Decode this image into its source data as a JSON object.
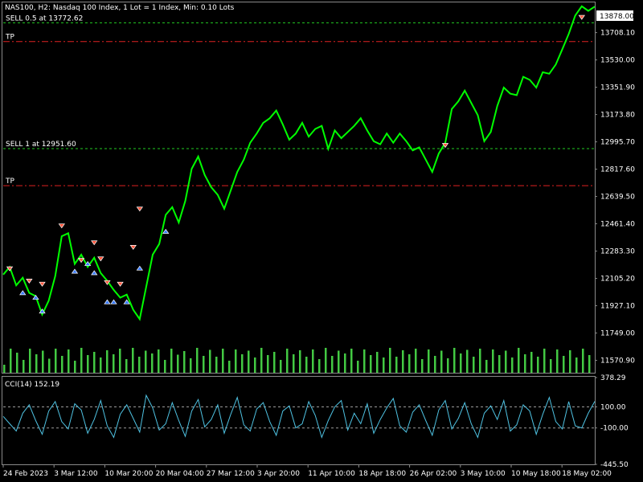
{
  "chart_data": [
    {
      "type": "line",
      "title": "NAS100, H2:  Nasdaq 100 Index, 1 Lot = 1 Index, Min: 0.10 Lots",
      "y_ticks": [
        "13708.10",
        "13530.00",
        "13351.90",
        "13173.80",
        "12995.70",
        "12817.60",
        "12639.50",
        "12461.40",
        "12283.30",
        "12105.20",
        "11927.10",
        "11749.00",
        "11570.90"
      ],
      "ylim": [
        11490,
        13900
      ],
      "current_price": "13878.00",
      "x_ticks": [
        "24 Feb 2023",
        "3 Mar 12:00",
        "10 Mar 20:00",
        "20 Mar 04:00",
        "27 Mar 12:00",
        "3 Apr 20:00",
        "11 Apr 10:00",
        "18 Apr 18:00",
        "26 Apr 02:00",
        "3 May 10:00",
        "10 May 18:00",
        "18 May 02:00"
      ],
      "series": [
        {
          "color": "#00ff00",
          "values": [
            12130,
            12180,
            12060,
            12110,
            12010,
            11990,
            11870,
            11960,
            12120,
            12380,
            12400,
            12200,
            12260,
            12180,
            12240,
            12140,
            12090,
            12030,
            11980,
            12000,
            11900,
            11840,
            12050,
            12260,
            12330,
            12520,
            12570,
            12470,
            12610,
            12820,
            12900,
            12780,
            12700,
            12650,
            12560,
            12680,
            12800,
            12880,
            12990,
            13050,
            13120,
            13150,
            13200,
            13110,
            13010,
            13050,
            13120,
            13030,
            13080,
            13100,
            12950,
            13070,
            13020,
            13060,
            13100,
            13150,
            13070,
            13000,
            12980,
            13050,
            12990,
            13050,
            13000,
            12940,
            12960,
            12880,
            12800,
            12920,
            12990,
            13210,
            13260,
            13330,
            13250,
            13170,
            13000,
            13060,
            13230,
            13350,
            13310,
            13300,
            13420,
            13400,
            13350,
            13450,
            13440,
            13500,
            13600,
            13700,
            13820,
            13880,
            13850,
            13878
          ]
        }
      ],
      "volume": [
        20,
        60,
        50,
        32,
        60,
        46,
        55,
        35,
        60,
        42,
        58,
        30,
        62,
        44,
        52,
        38,
        56,
        46,
        60,
        34,
        62,
        40,
        55,
        48,
        58,
        32,
        60,
        45,
        54,
        36,
        62,
        42,
        57,
        40,
        60,
        30,
        58,
        46,
        55,
        38,
        62,
        44,
        52,
        32,
        60,
        46,
        56,
        40,
        58,
        34,
        62,
        42,
        55,
        48,
        60,
        30,
        58,
        44,
        52,
        38,
        62,
        40,
        56,
        46,
        60,
        34,
        58,
        42,
        55,
        36,
        62,
        48,
        57,
        40,
        60,
        32,
        58,
        44,
        55,
        38,
        62,
        46,
        52,
        40,
        60,
        34,
        58,
        42,
        56,
        38,
        60,
        44
      ],
      "lines": [
        {
          "label": "SELL 0.5 at 13772.62",
          "price": 13772.62,
          "color": "#22cc22",
          "style": "dashed"
        },
        {
          "label": "TP",
          "price": 13650,
          "color": "#dd2222",
          "style": "dashdot"
        },
        {
          "label": "SELL 1 at 12951.60",
          "price": 12951.6,
          "color": "#22cc22",
          "style": "dashed"
        },
        {
          "label": "TP",
          "price": 12710,
          "color": "#dd2222",
          "style": "dashdot"
        }
      ],
      "sell_markers": [
        [
          1,
          12160
        ],
        [
          4,
          12080
        ],
        [
          6,
          12060
        ],
        [
          9,
          12440
        ],
        [
          12,
          12215
        ],
        [
          14,
          12330
        ],
        [
          15,
          12225
        ],
        [
          16,
          12070
        ],
        [
          18,
          12060
        ],
        [
          20,
          12300
        ],
        [
          21,
          12550
        ],
        [
          68,
          12965
        ],
        [
          89,
          13800
        ]
      ],
      "buy_markers": [
        [
          3,
          12020
        ],
        [
          5,
          11990
        ],
        [
          6,
          11900
        ],
        [
          11,
          12160
        ],
        [
          13,
          12210
        ],
        [
          14,
          12150
        ],
        [
          16,
          11960
        ],
        [
          17,
          11960
        ],
        [
          19,
          11960
        ],
        [
          21,
          12180
        ],
        [
          25,
          12420
        ]
      ]
    },
    {
      "type": "line",
      "title": "CCI(14) 152.19",
      "y_ticks": [
        "378.29",
        "100.00",
        "-100.00",
        "-445.50"
      ],
      "ylim": [
        -445.5,
        378.29
      ],
      "series": [
        {
          "color": "#4fc3e3",
          "values": [
            10,
            -60,
            -130,
            40,
            120,
            -30,
            -160,
            60,
            150,
            -40,
            -110,
            130,
            70,
            -150,
            -20,
            160,
            -80,
            -190,
            30,
            120,
            -10,
            -140,
            210,
            90,
            -120,
            -60,
            140,
            -30,
            -180,
            60,
            170,
            -90,
            -20,
            120,
            -150,
            30,
            190,
            -70,
            -130,
            80,
            140,
            -40,
            -170,
            60,
            110,
            -100,
            -60,
            150,
            20,
            -190,
            -30,
            100,
            160,
            -120,
            40,
            -60,
            130,
            -150,
            -20,
            90,
            180,
            -80,
            -140,
            50,
            120,
            -30,
            -170,
            70,
            160,
            -110,
            -10,
            140,
            -60,
            -190,
            40,
            110,
            -20,
            160,
            -130,
            -70,
            120,
            60,
            -160,
            30,
            190,
            -40,
            -110,
            150,
            -80,
            -100,
            40,
            152.19
          ]
        }
      ]
    }
  ]
}
